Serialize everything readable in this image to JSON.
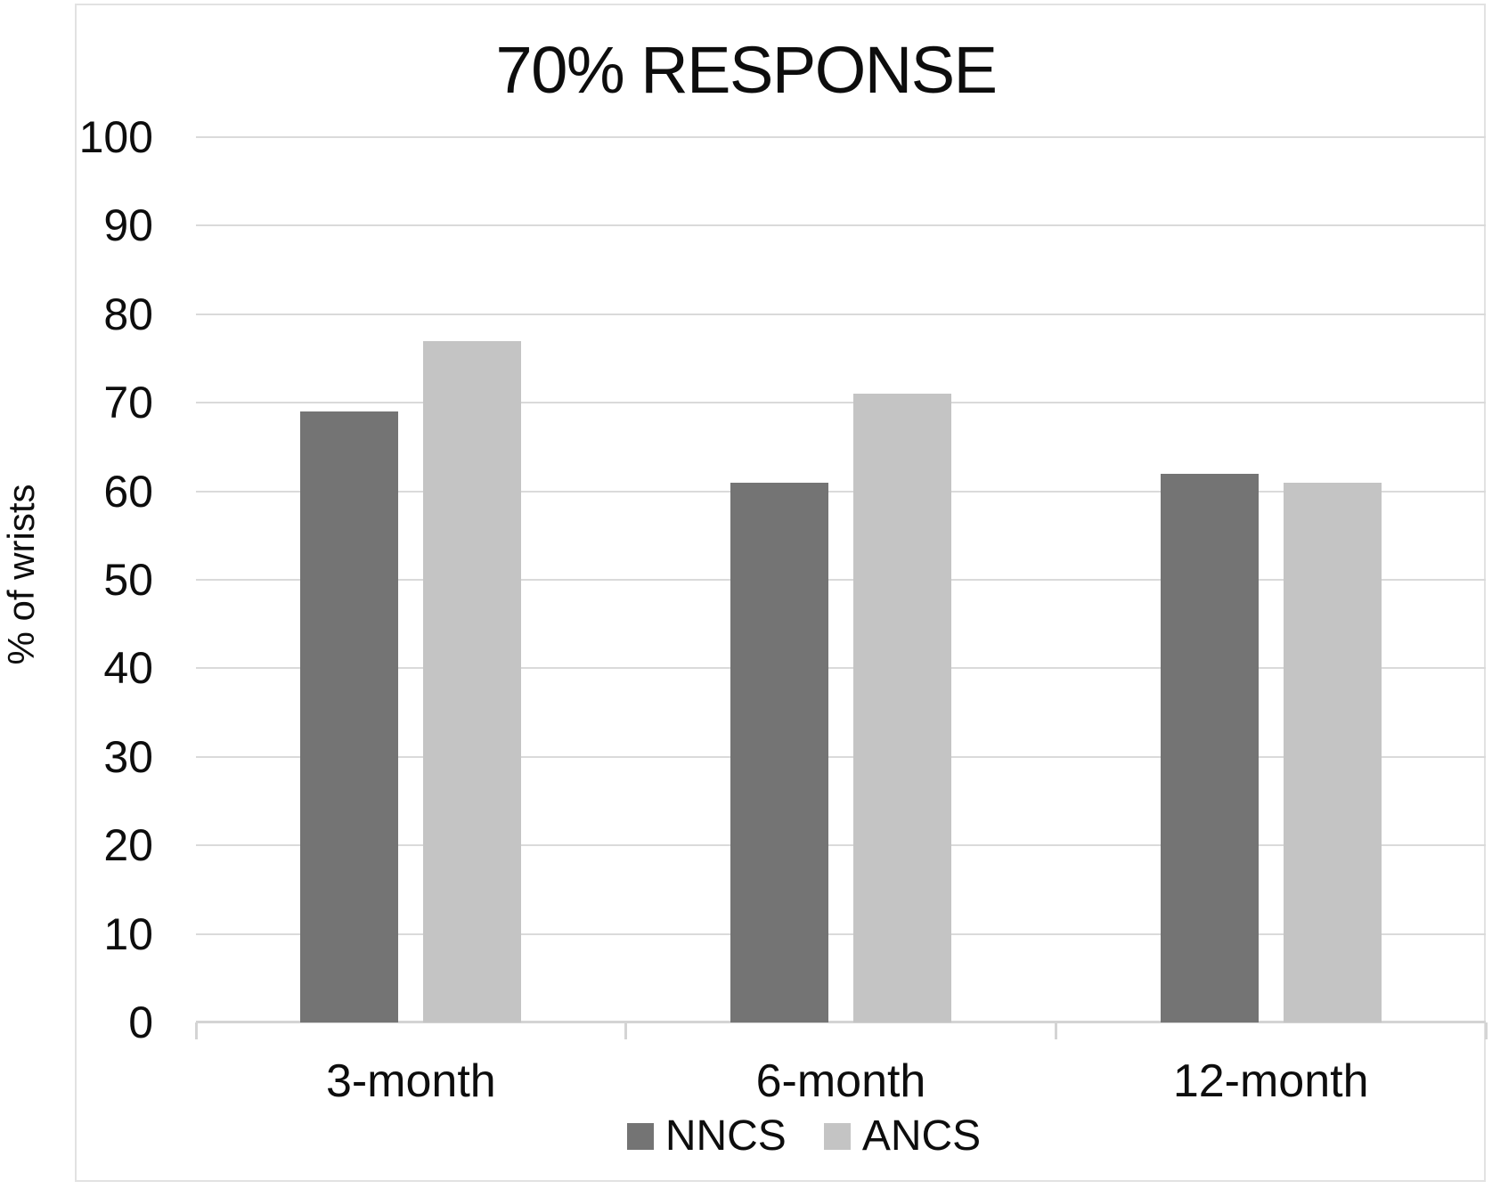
{
  "chart_data": {
    "type": "bar",
    "title": "70% RESPONSE",
    "ylabel": "% of wrists",
    "xlabel": "",
    "categories": [
      "3-month",
      "6-month",
      "12-month"
    ],
    "series": [
      {
        "name": "NNCS",
        "color": "#747474",
        "values": [
          69,
          61,
          62
        ]
      },
      {
        "name": "ANCS",
        "color": "#c4c4c4",
        "values": [
          77,
          71,
          61
        ]
      }
    ],
    "ylim": [
      0,
      100
    ],
    "yticks": [
      0,
      10,
      20,
      30,
      40,
      50,
      60,
      70,
      80,
      90,
      100
    ],
    "grid": true,
    "legend_position": "bottom",
    "legend": [
      "NNCS",
      "ANCS"
    ]
  },
  "colors": {
    "nncs": "#747474",
    "ancs": "#c4c4c4",
    "gridline": "#dadada",
    "axis_line": "#d4d4d4",
    "frame_border": "#e2e2e2",
    "text": "#0d0d0d",
    "background": "#ffffff"
  }
}
